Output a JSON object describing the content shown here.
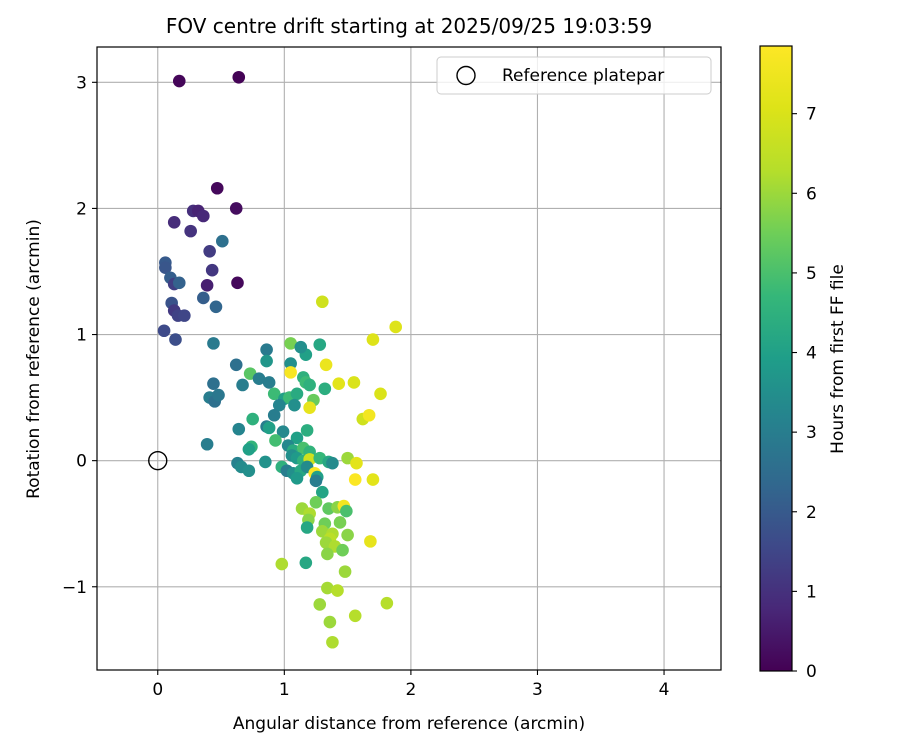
{
  "chart_data": {
    "type": "scatter",
    "title": "FOV centre drift starting at 2025/09/25 19:03:59",
    "xlabel": "Angular distance from reference (arcmin)",
    "ylabel": "Rotation from reference (arcmin)",
    "xlim": [
      -0.48,
      4.45
    ],
    "ylim": [
      -1.66,
      3.28
    ],
    "xticks": [
      0,
      1,
      2,
      3,
      4
    ],
    "xtick_labels": [
      "0",
      "1",
      "2",
      "3",
      "4"
    ],
    "yticks": [
      -1,
      0,
      1,
      2,
      3
    ],
    "ytick_labels": [
      "−1",
      "0",
      "1",
      "2",
      "3"
    ],
    "grid": true,
    "legend": {
      "position": "top-right",
      "entries": [
        "Reference platepar"
      ]
    },
    "reference_point": {
      "name": "Reference platepar",
      "x": 0,
      "y": 0
    },
    "colorbar": {
      "label": "Hours from first FF file",
      "min": 0,
      "max": 7.85,
      "ticks": [
        0,
        1,
        2,
        3,
        4,
        5,
        6,
        7
      ],
      "tick_labels": [
        "0",
        "1",
        "2",
        "3",
        "4",
        "5",
        "6",
        "7"
      ],
      "colormap": "viridis"
    },
    "points": [
      {
        "x": 0.17,
        "y": 3.01,
        "h": 0.1
      },
      {
        "x": 0.64,
        "y": 3.04,
        "h": 0.05
      },
      {
        "x": 0.47,
        "y": 2.16,
        "h": 0.15
      },
      {
        "x": 0.62,
        "y": 2.0,
        "h": 0.25
      },
      {
        "x": 0.13,
        "y": 1.89,
        "h": 0.9
      },
      {
        "x": 0.28,
        "y": 1.98,
        "h": 0.95
      },
      {
        "x": 0.32,
        "y": 1.98,
        "h": 0.7
      },
      {
        "x": 0.36,
        "y": 1.94,
        "h": 0.8
      },
      {
        "x": 0.26,
        "y": 1.82,
        "h": 1.05
      },
      {
        "x": 0.41,
        "y": 1.66,
        "h": 1.25
      },
      {
        "x": 0.51,
        "y": 1.74,
        "h": 2.6
      },
      {
        "x": 0.06,
        "y": 1.57,
        "h": 2.0
      },
      {
        "x": 0.06,
        "y": 1.53,
        "h": 1.9
      },
      {
        "x": 0.43,
        "y": 1.51,
        "h": 1.15
      },
      {
        "x": 0.1,
        "y": 1.45,
        "h": 2.1
      },
      {
        "x": 0.13,
        "y": 1.4,
        "h": 1.3
      },
      {
        "x": 0.17,
        "y": 1.41,
        "h": 2.2
      },
      {
        "x": 0.39,
        "y": 1.39,
        "h": 0.6
      },
      {
        "x": 0.63,
        "y": 1.41,
        "h": 0.15
      },
      {
        "x": 0.36,
        "y": 1.29,
        "h": 2.1
      },
      {
        "x": 0.11,
        "y": 1.25,
        "h": 1.8
      },
      {
        "x": 0.13,
        "y": 1.19,
        "h": 1.2
      },
      {
        "x": 0.16,
        "y": 1.15,
        "h": 1.4
      },
      {
        "x": 0.21,
        "y": 1.15,
        "h": 1.5
      },
      {
        "x": 0.46,
        "y": 1.22,
        "h": 2.3
      },
      {
        "x": 0.05,
        "y": 1.03,
        "h": 1.6
      },
      {
        "x": 0.14,
        "y": 0.96,
        "h": 1.7
      },
      {
        "x": 0.44,
        "y": 0.93,
        "h": 2.9
      },
      {
        "x": 0.62,
        "y": 0.76,
        "h": 2.6
      },
      {
        "x": 0.86,
        "y": 0.88,
        "h": 2.9
      },
      {
        "x": 0.86,
        "y": 0.79,
        "h": 3.7
      },
      {
        "x": 1.05,
        "y": 0.77,
        "h": 3.5
      },
      {
        "x": 1.05,
        "y": 0.93,
        "h": 5.6
      },
      {
        "x": 1.17,
        "y": 0.84,
        "h": 4.0
      },
      {
        "x": 1.13,
        "y": 0.9,
        "h": 3.5
      },
      {
        "x": 1.28,
        "y": 0.92,
        "h": 4.2
      },
      {
        "x": 1.3,
        "y": 1.26,
        "h": 6.8
      },
      {
        "x": 1.88,
        "y": 1.06,
        "h": 7.1
      },
      {
        "x": 1.7,
        "y": 0.96,
        "h": 7.1
      },
      {
        "x": 1.33,
        "y": 0.76,
        "h": 7.4
      },
      {
        "x": 1.05,
        "y": 0.7,
        "h": 7.7
      },
      {
        "x": 0.73,
        "y": 0.69,
        "h": 5.2
      },
      {
        "x": 0.8,
        "y": 0.65,
        "h": 3.0
      },
      {
        "x": 0.88,
        "y": 0.62,
        "h": 3.0
      },
      {
        "x": 0.44,
        "y": 0.61,
        "h": 2.6
      },
      {
        "x": 0.67,
        "y": 0.6,
        "h": 3.0
      },
      {
        "x": 1.15,
        "y": 0.66,
        "h": 4.5
      },
      {
        "x": 1.17,
        "y": 0.62,
        "h": 4.8
      },
      {
        "x": 1.2,
        "y": 0.6,
        "h": 4.5
      },
      {
        "x": 1.32,
        "y": 0.57,
        "h": 4.4
      },
      {
        "x": 1.43,
        "y": 0.61,
        "h": 7.2
      },
      {
        "x": 1.55,
        "y": 0.62,
        "h": 7.0
      },
      {
        "x": 1.76,
        "y": 0.53,
        "h": 7.0
      },
      {
        "x": 0.41,
        "y": 0.5,
        "h": 3.0
      },
      {
        "x": 0.45,
        "y": 0.47,
        "h": 2.6
      },
      {
        "x": 0.48,
        "y": 0.52,
        "h": 2.8
      },
      {
        "x": 0.92,
        "y": 0.53,
        "h": 4.8
      },
      {
        "x": 1.0,
        "y": 0.49,
        "h": 4.0
      },
      {
        "x": 1.04,
        "y": 0.5,
        "h": 4.8
      },
      {
        "x": 1.1,
        "y": 0.53,
        "h": 4.3
      },
      {
        "x": 1.23,
        "y": 0.48,
        "h": 5.4
      },
      {
        "x": 0.96,
        "y": 0.44,
        "h": 3.2
      },
      {
        "x": 1.08,
        "y": 0.44,
        "h": 3.5
      },
      {
        "x": 1.2,
        "y": 0.42,
        "h": 7.3
      },
      {
        "x": 0.75,
        "y": 0.33,
        "h": 4.5
      },
      {
        "x": 0.92,
        "y": 0.36,
        "h": 3.0
      },
      {
        "x": 1.62,
        "y": 0.33,
        "h": 6.8
      },
      {
        "x": 1.67,
        "y": 0.36,
        "h": 7.6
      },
      {
        "x": 0.64,
        "y": 0.25,
        "h": 3.2
      },
      {
        "x": 0.86,
        "y": 0.27,
        "h": 3.0
      },
      {
        "x": 0.88,
        "y": 0.26,
        "h": 4.0
      },
      {
        "x": 0.99,
        "y": 0.23,
        "h": 3.3
      },
      {
        "x": 1.1,
        "y": 0.18,
        "h": 4.0
      },
      {
        "x": 1.18,
        "y": 0.24,
        "h": 4.4
      },
      {
        "x": 0.39,
        "y": 0.13,
        "h": 3.0
      },
      {
        "x": 0.74,
        "y": 0.11,
        "h": 4.6
      },
      {
        "x": 0.72,
        "y": 0.09,
        "h": 4.0
      },
      {
        "x": 0.93,
        "y": 0.16,
        "h": 4.9
      },
      {
        "x": 1.03,
        "y": 0.12,
        "h": 3.3
      },
      {
        "x": 1.07,
        "y": 0.08,
        "h": 4.3
      },
      {
        "x": 1.15,
        "y": 0.1,
        "h": 5.0
      },
      {
        "x": 1.2,
        "y": 0.07,
        "h": 4.6
      },
      {
        "x": 1.06,
        "y": 0.04,
        "h": 3.5
      },
      {
        "x": 1.1,
        "y": 0.02,
        "h": 3.8
      },
      {
        "x": 1.15,
        "y": 0.0,
        "h": 4.5
      },
      {
        "x": 1.2,
        "y": 0.01,
        "h": 6.8
      },
      {
        "x": 1.28,
        "y": 0.02,
        "h": 4.7
      },
      {
        "x": 1.35,
        "y": -0.01,
        "h": 4.2
      },
      {
        "x": 1.38,
        "y": -0.02,
        "h": 3.4
      },
      {
        "x": 1.5,
        "y": 0.02,
        "h": 6.0
      },
      {
        "x": 1.57,
        "y": -0.02,
        "h": 7.2
      },
      {
        "x": 0.63,
        "y": -0.02,
        "h": 3.1
      },
      {
        "x": 0.85,
        "y": -0.01,
        "h": 3.6
      },
      {
        "x": 0.66,
        "y": -0.05,
        "h": 3.4
      },
      {
        "x": 0.72,
        "y": -0.08,
        "h": 3.5
      },
      {
        "x": 0.98,
        "y": -0.05,
        "h": 4.5
      },
      {
        "x": 1.02,
        "y": -0.08,
        "h": 3.0
      },
      {
        "x": 1.07,
        "y": -0.1,
        "h": 3.5
      },
      {
        "x": 1.13,
        "y": -0.08,
        "h": 4.2
      },
      {
        "x": 1.18,
        "y": -0.05,
        "h": 3.4
      },
      {
        "x": 1.24,
        "y": -0.1,
        "h": 7.8
      },
      {
        "x": 1.26,
        "y": -0.13,
        "h": 4.0
      },
      {
        "x": 1.1,
        "y": -0.14,
        "h": 3.8
      },
      {
        "x": 1.25,
        "y": -0.16,
        "h": 3.0
      },
      {
        "x": 1.56,
        "y": -0.15,
        "h": 7.8
      },
      {
        "x": 1.7,
        "y": -0.15,
        "h": 7.2
      },
      {
        "x": 1.3,
        "y": -0.25,
        "h": 4.1
      },
      {
        "x": 1.25,
        "y": -0.33,
        "h": 5.5
      },
      {
        "x": 1.35,
        "y": -0.38,
        "h": 5.3
      },
      {
        "x": 1.14,
        "y": -0.38,
        "h": 6.0
      },
      {
        "x": 1.2,
        "y": -0.42,
        "h": 6.2
      },
      {
        "x": 1.42,
        "y": -0.37,
        "h": 5.8
      },
      {
        "x": 1.47,
        "y": -0.36,
        "h": 7.6
      },
      {
        "x": 1.49,
        "y": -0.4,
        "h": 5.0
      },
      {
        "x": 1.19,
        "y": -0.47,
        "h": 5.8
      },
      {
        "x": 1.32,
        "y": -0.5,
        "h": 5.5
      },
      {
        "x": 1.44,
        "y": -0.49,
        "h": 5.6
      },
      {
        "x": 1.18,
        "y": -0.53,
        "h": 4.2
      },
      {
        "x": 1.3,
        "y": -0.56,
        "h": 6.0
      },
      {
        "x": 1.38,
        "y": -0.58,
        "h": 6.2
      },
      {
        "x": 1.5,
        "y": -0.59,
        "h": 5.8
      },
      {
        "x": 1.36,
        "y": -0.62,
        "h": 6.4
      },
      {
        "x": 1.33,
        "y": -0.65,
        "h": 6.0
      },
      {
        "x": 1.4,
        "y": -0.68,
        "h": 6.2
      },
      {
        "x": 1.46,
        "y": -0.71,
        "h": 5.5
      },
      {
        "x": 1.34,
        "y": -0.74,
        "h": 5.8
      },
      {
        "x": 1.68,
        "y": -0.64,
        "h": 7.3
      },
      {
        "x": 0.98,
        "y": -0.82,
        "h": 6.2
      },
      {
        "x": 1.17,
        "y": -0.81,
        "h": 4.2
      },
      {
        "x": 1.48,
        "y": -0.88,
        "h": 6.0
      },
      {
        "x": 1.34,
        "y": -1.01,
        "h": 6.1
      },
      {
        "x": 1.42,
        "y": -1.03,
        "h": 6.3
      },
      {
        "x": 1.28,
        "y": -1.14,
        "h": 6.0
      },
      {
        "x": 1.81,
        "y": -1.13,
        "h": 6.3
      },
      {
        "x": 1.56,
        "y": -1.23,
        "h": 6.3
      },
      {
        "x": 1.36,
        "y": -1.28,
        "h": 6.0
      },
      {
        "x": 1.38,
        "y": -1.44,
        "h": 6.2
      }
    ]
  }
}
